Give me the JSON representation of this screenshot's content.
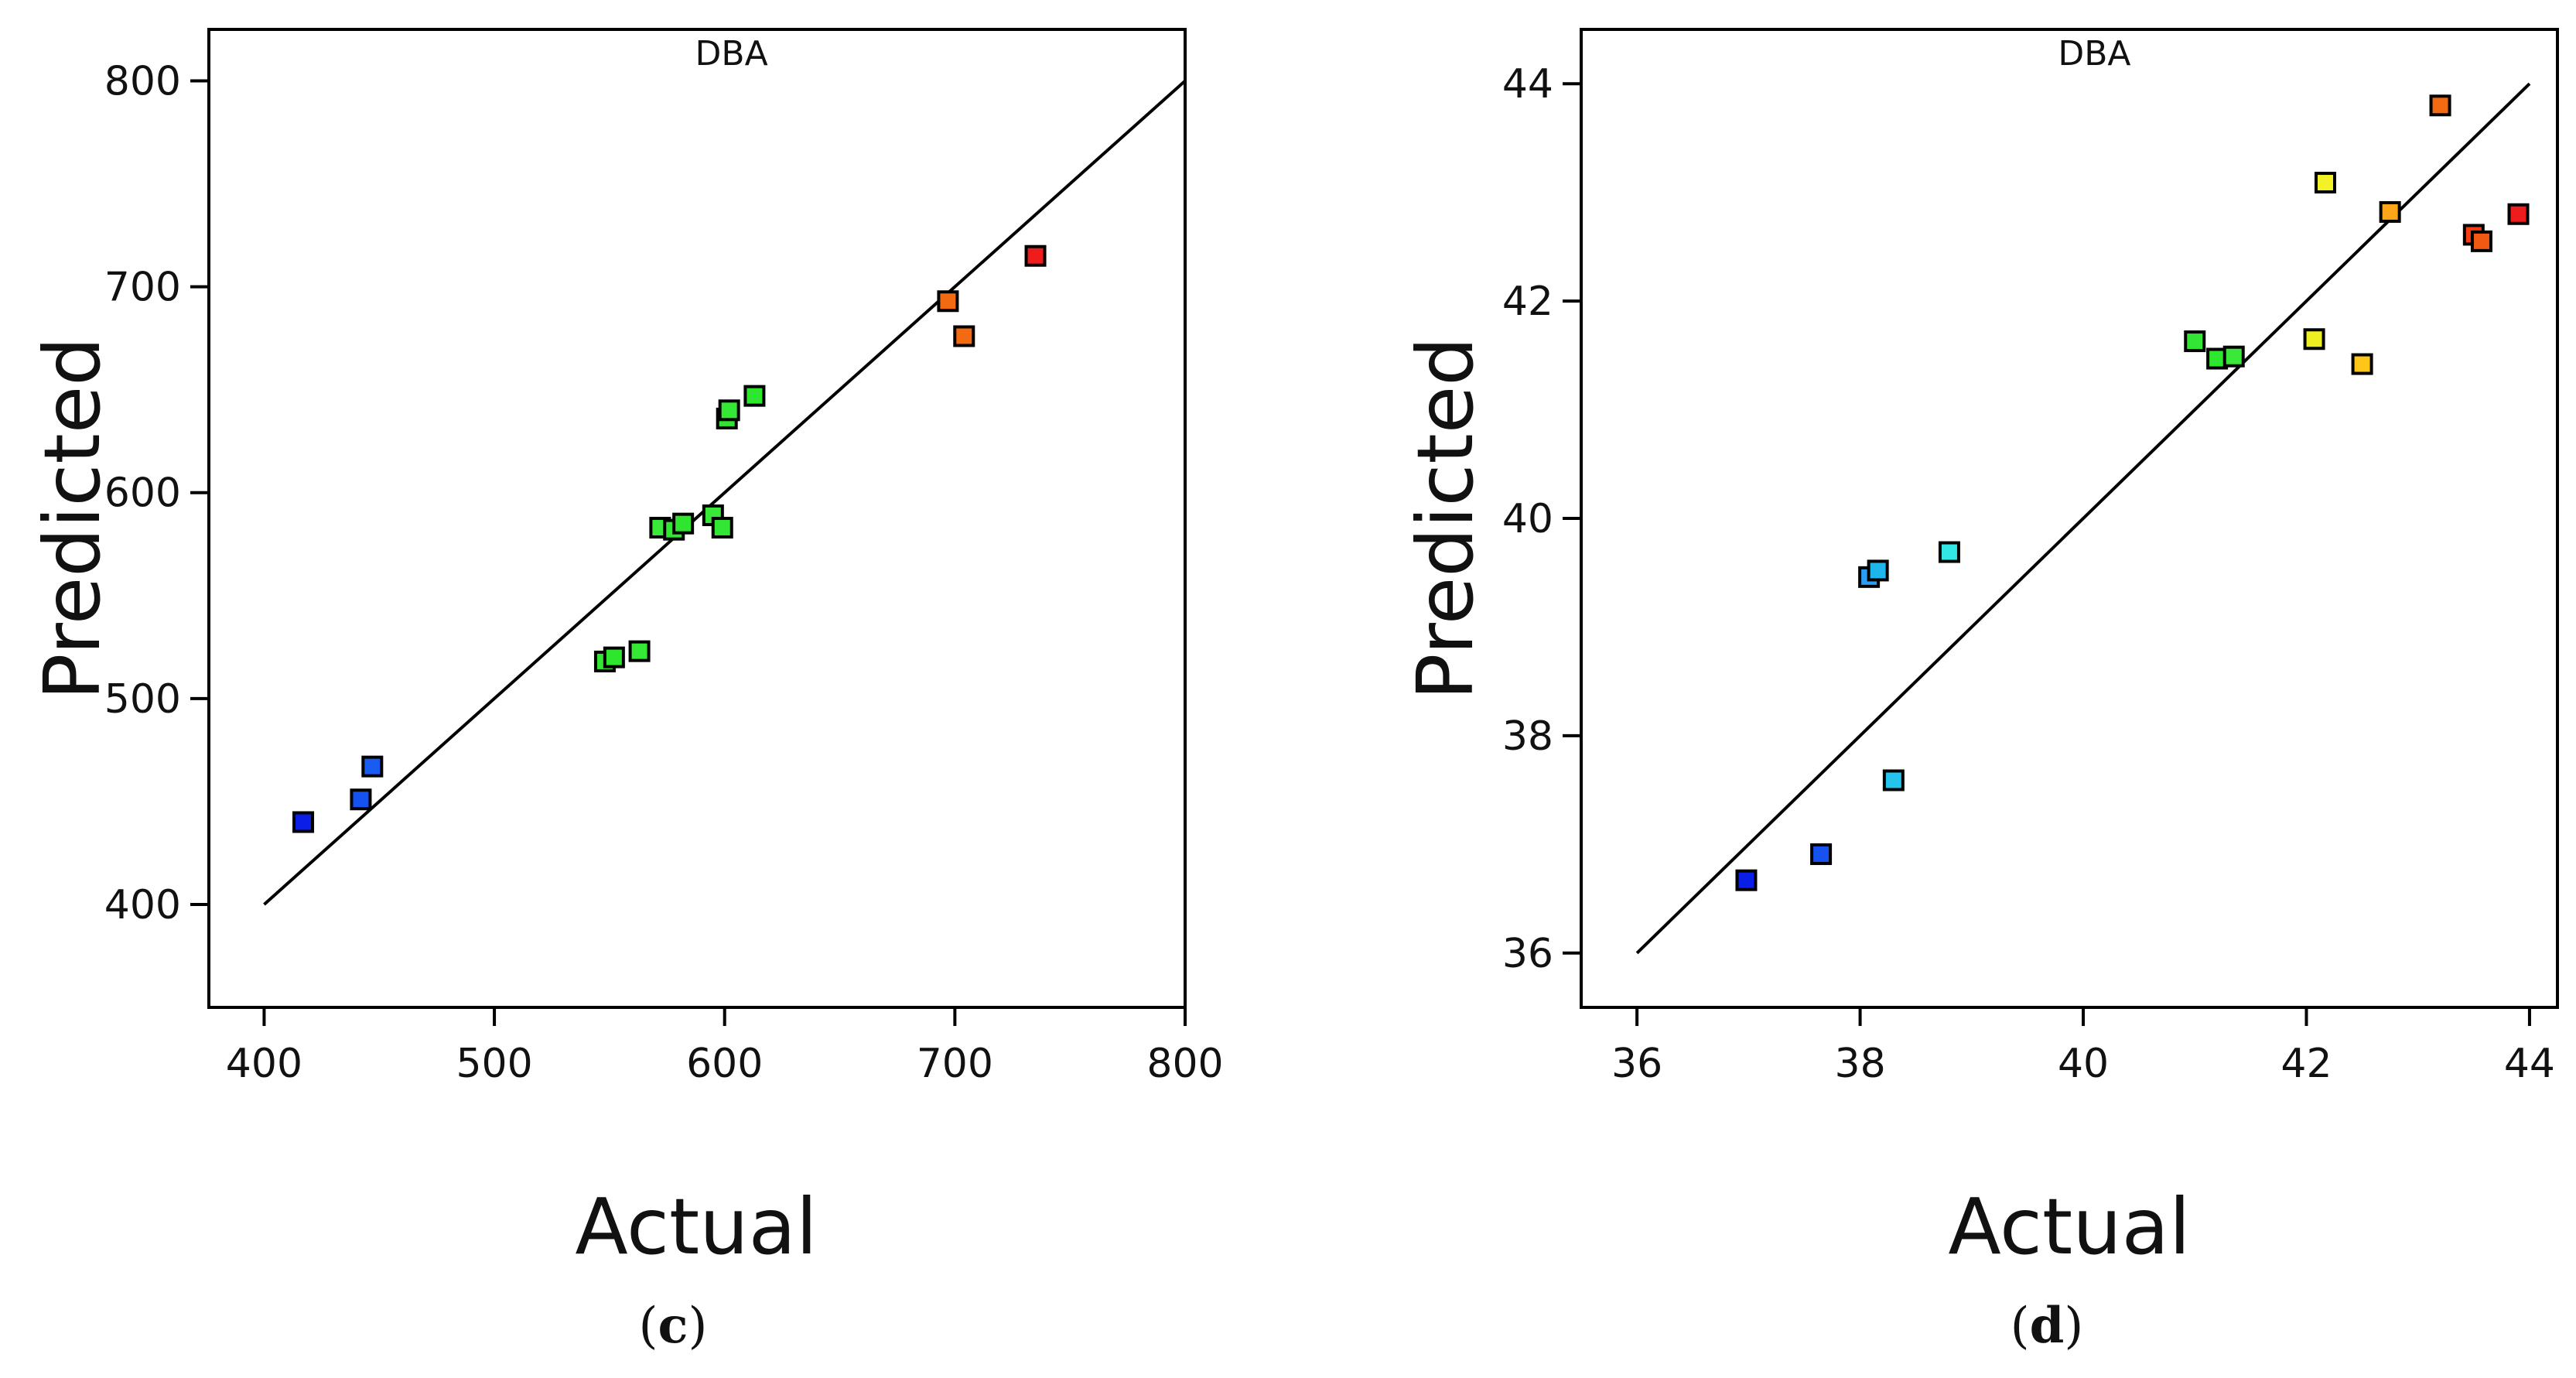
{
  "chart_data": [
    {
      "type": "scatter",
      "panel_label": "c",
      "xlabel": "Actual",
      "ylabel": "Predicted",
      "xlim": [
        376,
        800
      ],
      "ylim": [
        350,
        825
      ],
      "xticks": [
        400,
        500,
        600,
        700,
        800
      ],
      "yticks": [
        400,
        500,
        600,
        700,
        800
      ],
      "xtick_labels": [
        "400",
        "500",
        "600",
        "700",
        "800"
      ],
      "ytick_labels": [
        "400",
        "500",
        "600",
        "700",
        "800"
      ],
      "reference_line": {
        "from": [
          400,
          400
        ],
        "to": [
          800,
          800
        ]
      },
      "top_glyphs": {
        "x": 603,
        "text": "DBA"
      },
      "points": [
        {
          "x": 417,
          "y": 440,
          "color": "#0b1ee6"
        },
        {
          "x": 442,
          "y": 451,
          "color": "#1652f0"
        },
        {
          "x": 447,
          "y": 467,
          "color": "#1a5cf2"
        },
        {
          "x": 548,
          "y": 518,
          "color": "#33e633"
        },
        {
          "x": 552,
          "y": 520,
          "color": "#2ee62e"
        },
        {
          "x": 563,
          "y": 523,
          "color": "#35e835"
        },
        {
          "x": 572,
          "y": 583,
          "color": "#3ae83a"
        },
        {
          "x": 578,
          "y": 582,
          "color": "#33e633"
        },
        {
          "x": 582,
          "y": 585,
          "color": "#2ee62e"
        },
        {
          "x": 595,
          "y": 589,
          "color": "#3ae83a"
        },
        {
          "x": 599,
          "y": 583,
          "color": "#33e633"
        },
        {
          "x": 601,
          "y": 636,
          "color": "#2ee62e"
        },
        {
          "x": 602,
          "y": 640,
          "color": "#35e835"
        },
        {
          "x": 613,
          "y": 647,
          "color": "#2ee62e"
        },
        {
          "x": 697,
          "y": 693,
          "color": "#f26a12"
        },
        {
          "x": 704,
          "y": 676,
          "color": "#f26a12"
        },
        {
          "x": 735,
          "y": 715,
          "color": "#ee1c1c"
        }
      ]
    },
    {
      "type": "scatter",
      "panel_label": "d",
      "xlabel": "Actual",
      "ylabel": "Predicted",
      "xlim": [
        35.5,
        44.25
      ],
      "ylim": [
        35.5,
        44.5
      ],
      "xticks": [
        36,
        38,
        40,
        42,
        44
      ],
      "yticks": [
        36,
        38,
        40,
        42,
        44
      ],
      "xtick_labels": [
        "36",
        "38",
        "40",
        "42",
        "44"
      ],
      "ytick_labels": [
        "36",
        "38",
        "40",
        "42",
        "44"
      ],
      "reference_line": {
        "from": [
          36,
          36
        ],
        "to": [
          44,
          44
        ]
      },
      "top_glyphs": {
        "x": 40.1,
        "text": "DBA"
      },
      "points": [
        {
          "x": 36.98,
          "y": 36.67,
          "color": "#0b1ee6"
        },
        {
          "x": 37.65,
          "y": 36.91,
          "color": "#1652f0"
        },
        {
          "x": 38.08,
          "y": 39.46,
          "color": "#2a9ef2"
        },
        {
          "x": 38.16,
          "y": 39.52,
          "color": "#1fb6ec"
        },
        {
          "x": 38.3,
          "y": 37.59,
          "color": "#24c4ee"
        },
        {
          "x": 38.8,
          "y": 39.69,
          "color": "#33e6e6"
        },
        {
          "x": 41.0,
          "y": 41.63,
          "color": "#33e633"
        },
        {
          "x": 41.2,
          "y": 41.47,
          "color": "#2ee62e"
        },
        {
          "x": 41.35,
          "y": 41.49,
          "color": "#3ae83a"
        },
        {
          "x": 42.07,
          "y": 41.65,
          "color": "#eeee22"
        },
        {
          "x": 42.17,
          "y": 43.09,
          "color": "#f2f226"
        },
        {
          "x": 42.5,
          "y": 41.42,
          "color": "#ffc61a"
        },
        {
          "x": 42.75,
          "y": 42.82,
          "color": "#ffa51a"
        },
        {
          "x": 43.2,
          "y": 43.8,
          "color": "#f26a12"
        },
        {
          "x": 43.5,
          "y": 42.61,
          "color": "#f53f12"
        },
        {
          "x": 43.57,
          "y": 42.55,
          "color": "#f25a14"
        },
        {
          "x": 43.9,
          "y": 42.8,
          "color": "#ee1c1c"
        }
      ]
    }
  ]
}
